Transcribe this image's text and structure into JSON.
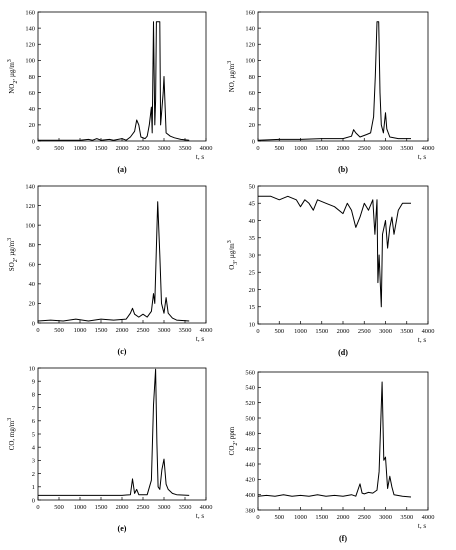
{
  "colors": {
    "line": "#000000",
    "axis": "#000000",
    "background": "#ffffff"
  },
  "chart_data": [
    {
      "type": "line",
      "panel_label": "(a)",
      "ylabel": "NO2, µg/m3",
      "xlabel": "t, s",
      "xlim": [
        0,
        4000
      ],
      "ylim": [
        0,
        160
      ],
      "xticks": [
        "0",
        "500",
        "1000",
        "1500",
        "2000",
        "2500",
        "3000",
        "3500",
        "4000"
      ],
      "yticks": [
        "0",
        "20",
        "40",
        "60",
        "80",
        "100",
        "120",
        "140",
        "160"
      ],
      "series": [
        {
          "points": [
            [
              0,
              1
            ],
            [
              500,
              1
            ],
            [
              1000,
              1
            ],
            [
              1200,
              2
            ],
            [
              1300,
              1
            ],
            [
              1400,
              3
            ],
            [
              1500,
              1
            ],
            [
              1700,
              2
            ],
            [
              1800,
              1
            ],
            [
              2000,
              3
            ],
            [
              2100,
              1
            ],
            [
              2200,
              5
            ],
            [
              2300,
              12
            ],
            [
              2350,
              26
            ],
            [
              2400,
              20
            ],
            [
              2450,
              5
            ],
            [
              2550,
              3
            ],
            [
              2600,
              6
            ],
            [
              2650,
              20
            ],
            [
              2700,
              42
            ],
            [
              2720,
              10
            ],
            [
              2750,
              148
            ],
            [
              2780,
              20
            ],
            [
              2800,
              50
            ],
            [
              2820,
              148
            ],
            [
              2900,
              148
            ],
            [
              2920,
              20
            ],
            [
              2980,
              60
            ],
            [
              3000,
              80
            ],
            [
              3050,
              10
            ],
            [
              3150,
              6
            ],
            [
              3250,
              4
            ],
            [
              3400,
              2
            ],
            [
              3600,
              1
            ]
          ]
        }
      ]
    },
    {
      "type": "line",
      "panel_label": "(b)",
      "ylabel": "NO, µg/m3",
      "xlabel": "t, s",
      "xlim": [
        0,
        4000
      ],
      "ylim": [
        0,
        160
      ],
      "xticks": [
        "0",
        "500",
        "1000",
        "1500",
        "2000",
        "2500",
        "3000",
        "3500",
        "4000"
      ],
      "yticks": [
        "0",
        "20",
        "40",
        "60",
        "80",
        "100",
        "120",
        "140",
        "160"
      ],
      "series": [
        {
          "points": [
            [
              0,
              1
            ],
            [
              500,
              2
            ],
            [
              1000,
              2
            ],
            [
              1500,
              3
            ],
            [
              2000,
              3
            ],
            [
              2200,
              6
            ],
            [
              2250,
              14
            ],
            [
              2300,
              10
            ],
            [
              2400,
              5
            ],
            [
              2550,
              8
            ],
            [
              2650,
              10
            ],
            [
              2720,
              30
            ],
            [
              2760,
              80
            ],
            [
              2800,
              148
            ],
            [
              2840,
              148
            ],
            [
              2870,
              60
            ],
            [
              2900,
              20
            ],
            [
              2950,
              10
            ],
            [
              3000,
              35
            ],
            [
              3030,
              15
            ],
            [
              3100,
              5
            ],
            [
              3300,
              3
            ],
            [
              3600,
              3
            ]
          ]
        }
      ]
    },
    {
      "type": "line",
      "panel_label": "(c)",
      "ylabel": "SO2, µg/m3",
      "xlabel": "t, s",
      "xlim": [
        0,
        4000
      ],
      "ylim": [
        0,
        140
      ],
      "xticks": [
        "0",
        "500",
        "1000",
        "1500",
        "2000",
        "2500",
        "3000",
        "3500",
        "4000"
      ],
      "yticks": [
        "0",
        "20",
        "40",
        "60",
        "80",
        "100",
        "120",
        "140"
      ],
      "series": [
        {
          "points": [
            [
              0,
              2
            ],
            [
              300,
              3
            ],
            [
              600,
              2
            ],
            [
              900,
              4
            ],
            [
              1200,
              2
            ],
            [
              1500,
              4
            ],
            [
              1800,
              3
            ],
            [
              2100,
              4
            ],
            [
              2200,
              10
            ],
            [
              2250,
              15
            ],
            [
              2300,
              9
            ],
            [
              2400,
              6
            ],
            [
              2500,
              9
            ],
            [
              2600,
              6
            ],
            [
              2700,
              12
            ],
            [
              2750,
              30
            ],
            [
              2780,
              20
            ],
            [
              2850,
              124
            ],
            [
              2900,
              70
            ],
            [
              2940,
              20
            ],
            [
              3000,
              10
            ],
            [
              3050,
              26
            ],
            [
              3100,
              10
            ],
            [
              3200,
              5
            ],
            [
              3300,
              3
            ],
            [
              3600,
              2
            ]
          ]
        }
      ]
    },
    {
      "type": "line",
      "panel_label": "(d)",
      "ylabel": "O3, µg/m3",
      "xlabel": "t, s",
      "xlim": [
        0,
        4000
      ],
      "ylim": [
        10,
        50
      ],
      "xticks": [
        "0",
        "500",
        "1000",
        "1500",
        "2000",
        "2500",
        "3000",
        "3500",
        "4000"
      ],
      "yticks": [
        "10",
        "15",
        "20",
        "25",
        "30",
        "35",
        "40",
        "45",
        "50"
      ],
      "series": [
        {
          "points": [
            [
              0,
              47
            ],
            [
              300,
              47
            ],
            [
              500,
              46
            ],
            [
              700,
              47
            ],
            [
              900,
              46
            ],
            [
              1000,
              44
            ],
            [
              1100,
              46
            ],
            [
              1200,
              45
            ],
            [
              1300,
              43
            ],
            [
              1400,
              46
            ],
            [
              1600,
              45
            ],
            [
              1800,
              44
            ],
            [
              2000,
              42
            ],
            [
              2100,
              45
            ],
            [
              2200,
              43
            ],
            [
              2300,
              38
            ],
            [
              2400,
              41
            ],
            [
              2500,
              45
            ],
            [
              2600,
              43
            ],
            [
              2700,
              46
            ],
            [
              2750,
              36
            ],
            [
              2800,
              46
            ],
            [
              2820,
              22
            ],
            [
              2850,
              30
            ],
            [
              2900,
              15
            ],
            [
              2930,
              36
            ],
            [
              3000,
              40
            ],
            [
              3050,
              32
            ],
            [
              3100,
              38
            ],
            [
              3150,
              41
            ],
            [
              3200,
              36
            ],
            [
              3300,
              43
            ],
            [
              3400,
              45
            ],
            [
              3500,
              45
            ],
            [
              3600,
              45
            ]
          ]
        }
      ]
    },
    {
      "type": "line",
      "panel_label": "(e)",
      "ylabel": "CO, mg/m3",
      "xlabel": "t, s",
      "xlim": [
        0,
        4000
      ],
      "ylim": [
        0,
        10
      ],
      "xticks": [
        "0",
        "500",
        "1000",
        "1500",
        "2000",
        "2500",
        "3000",
        "3500",
        "4000"
      ],
      "yticks": [
        "0",
        "1",
        "2",
        "3",
        "4",
        "5",
        "6",
        "7",
        "8",
        "9",
        "10"
      ],
      "series": [
        {
          "points": [
            [
              0,
              0.35
            ],
            [
              500,
              0.35
            ],
            [
              1000,
              0.35
            ],
            [
              1500,
              0.35
            ],
            [
              2000,
              0.35
            ],
            [
              2200,
              0.4
            ],
            [
              2250,
              1.6
            ],
            [
              2300,
              0.5
            ],
            [
              2350,
              0.8
            ],
            [
              2400,
              0.4
            ],
            [
              2600,
              0.4
            ],
            [
              2700,
              1.5
            ],
            [
              2750,
              7.2
            ],
            [
              2800,
              9.9
            ],
            [
              2830,
              4.3
            ],
            [
              2860,
              1.0
            ],
            [
              2900,
              0.8
            ],
            [
              2950,
              2.3
            ],
            [
              3000,
              3.1
            ],
            [
              3050,
              1.2
            ],
            [
              3100,
              0.8
            ],
            [
              3200,
              0.5
            ],
            [
              3300,
              0.4
            ],
            [
              3600,
              0.35
            ]
          ]
        }
      ]
    },
    {
      "type": "line",
      "panel_label": "(f)",
      "ylabel": "CO2, ppm",
      "xlabel": "t, s",
      "xlim": [
        0,
        4000
      ],
      "ylim": [
        380,
        560
      ],
      "xticks": [
        "0",
        "500",
        "1000",
        "1500",
        "2000",
        "2500",
        "3000",
        "3500",
        "4000"
      ],
      "yticks": [
        "380",
        "400",
        "420",
        "440",
        "460",
        "480",
        "500",
        "520",
        "540",
        "560"
      ],
      "series": [
        {
          "points": [
            [
              0,
              398
            ],
            [
              200,
              399
            ],
            [
              400,
              398
            ],
            [
              600,
              400
            ],
            [
              800,
              398
            ],
            [
              1000,
              399
            ],
            [
              1200,
              398
            ],
            [
              1400,
              400
            ],
            [
              1600,
              398
            ],
            [
              1800,
              399
            ],
            [
              2000,
              398
            ],
            [
              2200,
              400
            ],
            [
              2300,
              398
            ],
            [
              2400,
              414
            ],
            [
              2450,
              402
            ],
            [
              2500,
              401
            ],
            [
              2600,
              403
            ],
            [
              2700,
              402
            ],
            [
              2800,
              406
            ],
            [
              2850,
              430
            ],
            [
              2920,
              547
            ],
            [
              2960,
              445
            ],
            [
              3000,
              449
            ],
            [
              3050,
              408
            ],
            [
              3100,
              424
            ],
            [
              3150,
              410
            ],
            [
              3200,
              400
            ],
            [
              3400,
              398
            ],
            [
              3600,
              397
            ]
          ]
        }
      ]
    }
  ]
}
